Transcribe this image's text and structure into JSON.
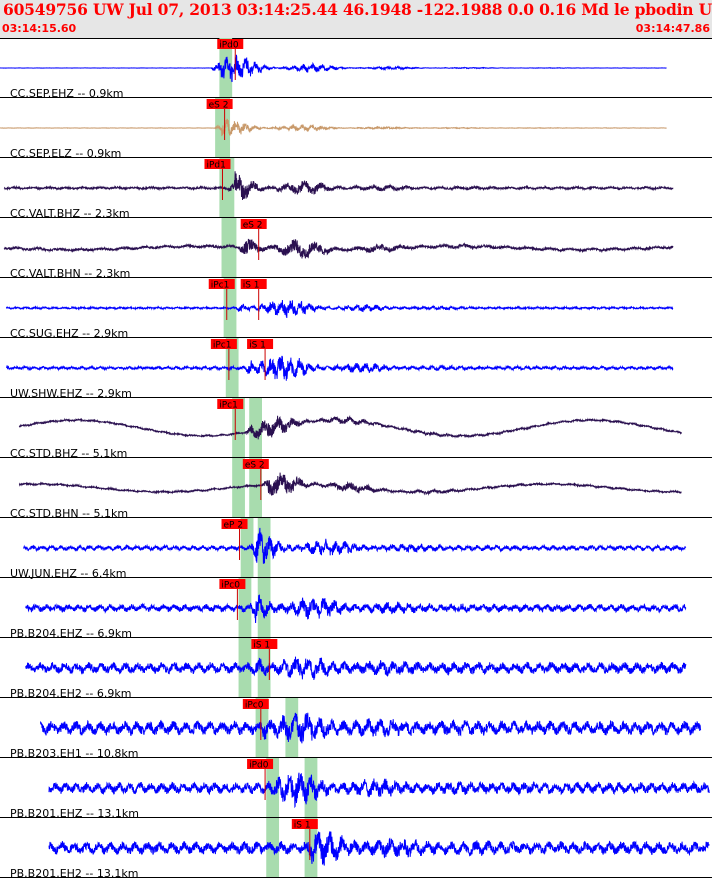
{
  "header": {
    "title": "60549756 UW Jul 07, 2013 03:14:25.44   46.1948 -122.1988  0.0 0.16 Md le pbodin UW 01   2",
    "time_start": "03:14:15.60",
    "time_end": "03:14:47.86"
  },
  "chart_data": {
    "type": "seismogram",
    "title": "60549756 UW Jul 07, 2013 03:14:25.44   46.1948 -122.1988  0.0 0.16 Md le pbodin UW 01   2",
    "x_range": [
      "03:14:15.60",
      "03:14:47.86"
    ],
    "x_range_seconds": [
      0,
      32.26
    ],
    "grid": false,
    "colors": {
      "background": "#ffffff",
      "phase_box": "#ff0000",
      "pick_line": "#cc0000",
      "window_band": "#a8dcae"
    },
    "series": [
      {
        "name": "CC.SEP.EHZ -- 0.9km",
        "color": "#0000ff",
        "start": 0.0,
        "end": 31.3,
        "picks": [
          {
            "label": "iPd0",
            "t": 10.2
          }
        ],
        "windows": [
          [
            10.3,
            10.9
          ]
        ],
        "amp": 0.55,
        "noise": 0.003,
        "bg_amp": 0,
        "burst": 10.25,
        "dominant_freq": 9
      },
      {
        "name": "CC.SEP.ELZ -- 0.9km",
        "color": "#c8996a",
        "start": 0.0,
        "end": 31.3,
        "picks": [
          {
            "label": "eS 2",
            "t": 9.7
          }
        ],
        "windows": [
          [
            10.1,
            10.8
          ]
        ],
        "amp": 0.35,
        "noise": 0.005,
        "bg_amp": 0,
        "burst": 10.4,
        "dominant_freq": 9
      },
      {
        "name": "CC.VALT.BHZ -- 2.3km",
        "color": "#2a1050",
        "start": 0.2,
        "end": 31.6,
        "picks": [
          {
            "label": "iPd1",
            "t": 9.6
          }
        ],
        "windows": [
          [
            10.3,
            11.0
          ]
        ],
        "amp": 0.6,
        "noise": 0.04,
        "bg_amp": 0,
        "burst": 11.0,
        "dominant_freq": 5
      },
      {
        "name": "CC.VALT.BHN -- 2.3km",
        "color": "#2a1050",
        "start": 0.2,
        "end": 31.6,
        "picks": [
          {
            "label": "eS 2",
            "t": 11.3
          }
        ],
        "windows": [
          [
            10.4,
            11.1
          ]
        ],
        "amp": 0.65,
        "noise": 0.05,
        "bg_amp": 0.06,
        "burst": 11.5,
        "dominant_freq": 4
      },
      {
        "name": "CC.SUG.EHZ -- 2.9km",
        "color": "#0000ff",
        "start": 0.3,
        "end": 31.6,
        "picks": [
          {
            "label": "iPc1",
            "t": 9.8
          },
          {
            "label": "iS 1",
            "t": 11.3
          }
        ],
        "windows": [
          [
            10.5,
            11.1
          ]
        ],
        "amp": 0.55,
        "noise": 0.03,
        "bg_amp": 0,
        "burst": 11.4,
        "dominant_freq": 9
      },
      {
        "name": "UW.SHW.EHZ -- 2.9km",
        "color": "#0000ff",
        "start": 0.3,
        "end": 31.6,
        "picks": [
          {
            "label": "iPc1",
            "t": 9.9
          },
          {
            "label": "iS 1",
            "t": 11.6
          }
        ],
        "windows": [
          [
            10.6,
            11.2
          ]
        ],
        "amp": 0.65,
        "noise": 0.05,
        "bg_amp": 0,
        "burst": 11.8,
        "dominant_freq": 9
      },
      {
        "name": "CC.STD.BHZ -- 5.1km",
        "color": "#2a1050",
        "start": 0.9,
        "end": 32.0,
        "picks": [
          {
            "label": "iPc1",
            "t": 10.2
          }
        ],
        "windows": [
          [
            10.9,
            11.5
          ],
          [
            11.7,
            12.3
          ]
        ],
        "amp": 0.45,
        "noise": 0.03,
        "bg_amp": 0.28,
        "burst": 11.8,
        "dominant_freq": 6
      },
      {
        "name": "CC.STD.BHN -- 5.1km",
        "color": "#2a1050",
        "start": 0.9,
        "end": 32.0,
        "picks": [
          {
            "label": "eS 2",
            "t": 11.4
          }
        ],
        "windows": [
          [
            10.9,
            11.5
          ],
          [
            11.7,
            12.3
          ]
        ],
        "amp": 0.5,
        "noise": 0.03,
        "bg_amp": 0.14,
        "burst": 12.6,
        "dominant_freq": 5
      },
      {
        "name": "UW.JUN.EHZ -- 6.4km",
        "color": "#0000ff",
        "start": 1.1,
        "end": 32.2,
        "picks": [
          {
            "label": "eP 2",
            "t": 10.4
          }
        ],
        "windows": [
          [
            11.3,
            11.9
          ],
          [
            12.1,
            12.7
          ]
        ],
        "amp": 0.6,
        "noise": 0.08,
        "bg_amp": 0,
        "burst": 12.0,
        "dominant_freq": 9
      },
      {
        "name": "PB.B204.EHZ -- 6.9km",
        "color": "#0000ff",
        "start": 1.2,
        "end": 32.2,
        "picks": [
          {
            "label": "iPc0",
            "t": 10.3
          }
        ],
        "windows": [
          [
            11.2,
            11.8
          ],
          [
            12.1,
            12.7
          ]
        ],
        "amp": 0.6,
        "noise": 0.12,
        "bg_amp": 0,
        "burst": 12.0,
        "dominant_freq": 8
      },
      {
        "name": "PB.B204.EH2 -- 6.9km",
        "color": "#0000ff",
        "start": 1.2,
        "end": 32.2,
        "picks": [
          {
            "label": "iS 1",
            "t": 11.8
          }
        ],
        "windows": [
          [
            11.2,
            11.8
          ],
          [
            12.1,
            12.7
          ]
        ],
        "amp": 0.45,
        "noise": 0.18,
        "bg_amp": 0,
        "burst": 12.2,
        "dominant_freq": 7
      },
      {
        "name": "PB.B203.EH1 -- 10.8km",
        "color": "#0000ff",
        "start": 1.9,
        "end": 32.9,
        "picks": [
          {
            "label": "iPc0",
            "t": 11.4
          }
        ],
        "windows": [
          [
            12.0,
            12.6
          ],
          [
            13.4,
            14.0
          ]
        ],
        "amp": 0.5,
        "noise": 0.22,
        "bg_amp": 0,
        "burst": 12.5,
        "dominant_freq": 7
      },
      {
        "name": "PB.B201.EHZ -- 13.1km",
        "color": "#0000ff",
        "start": 2.3,
        "end": 33.3,
        "picks": [
          {
            "label": "iPd0",
            "t": 11.6
          }
        ],
        "windows": [
          [
            12.5,
            13.1
          ],
          [
            14.3,
            14.9
          ]
        ],
        "amp": 0.55,
        "noise": 0.18,
        "bg_amp": 0,
        "burst": 12.9,
        "dominant_freq": 8
      },
      {
        "name": "PB.B201.EH2 -- 13.1km",
        "color": "#0000ff",
        "start": 2.3,
        "end": 33.3,
        "picks": [
          {
            "label": "iS 1",
            "t": 13.7
          }
        ],
        "windows": [
          [
            12.5,
            13.1
          ],
          [
            14.3,
            14.9
          ]
        ],
        "amp": 0.45,
        "noise": 0.2,
        "bg_amp": 0,
        "burst": 14.6,
        "dominant_freq": 7
      }
    ]
  }
}
